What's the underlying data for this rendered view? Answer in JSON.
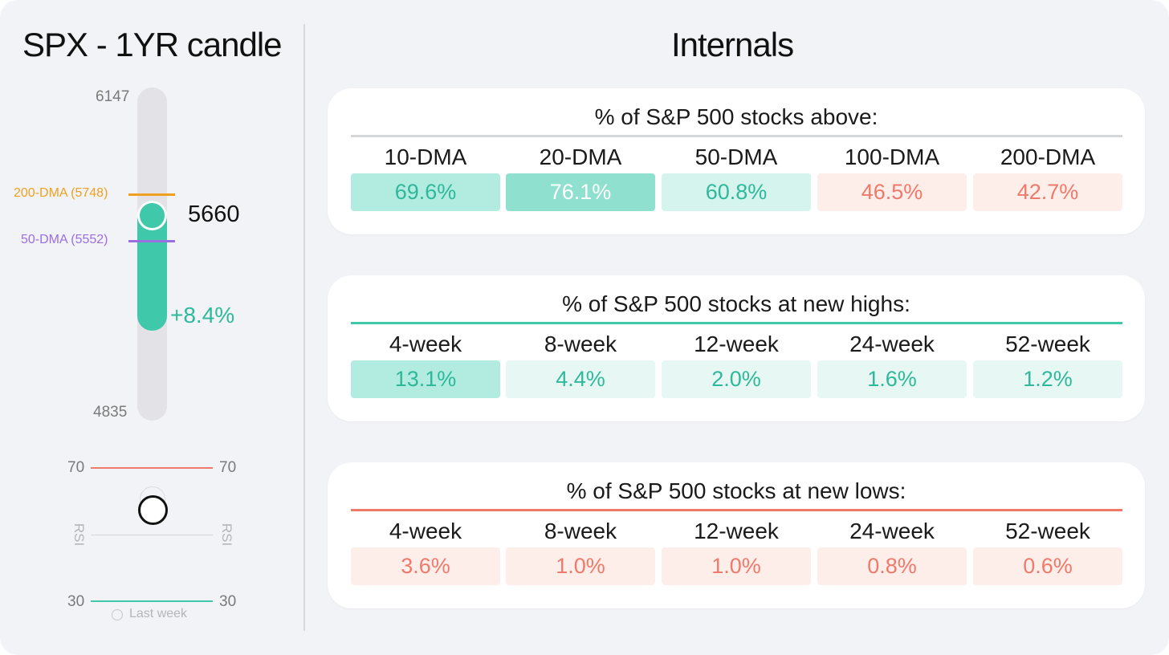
{
  "left_title": "SPX - 1YR candle",
  "right_title": "Internals",
  "colors": {
    "background": "#f2f3f7",
    "green": "#3fc8a9",
    "green_text": "#2fb89a",
    "red_text": "#ef7a6b",
    "orange": "#f0a020",
    "purple": "#9a6fe0",
    "track": "#e2e2e7"
  },
  "candle": {
    "high_label": "6147",
    "low_label": "4835",
    "current_label": "5660",
    "change_label": "+8.4%",
    "dma200_label": "200-DMA (5748)",
    "dma50_label": "50-DMA (5552)"
  },
  "rsi": {
    "upper_left": "70",
    "upper_right": "70",
    "lower_left": "30",
    "lower_right": "30",
    "axis_left": "RSI",
    "axis_right": "RSI",
    "legend_last_week": "Last week"
  },
  "panels": [
    {
      "title": "% of S&P 500 stocks above:",
      "rule_color": "#d6d7db",
      "columns": [
        "10-DMA",
        "20-DMA",
        "50-DMA",
        "100-DMA",
        "200-DMA"
      ],
      "values": [
        "69.6%",
        "76.1%",
        "60.8%",
        "46.5%",
        "42.7%"
      ],
      "cell_colors": [
        "#b2ebdf",
        "#8fe0cf",
        "#d5f4ed",
        "#fdeeea",
        "#fdeeea"
      ],
      "text_colors": [
        "#2fb89a",
        "#ffffff",
        "#2fb89a",
        "#ef7a6b",
        "#ef7a6b"
      ]
    },
    {
      "title": "% of S&P 500 stocks at new highs:",
      "rule_color": "#3fc8a9",
      "columns": [
        "4-week",
        "8-week",
        "12-week",
        "24-week",
        "52-week"
      ],
      "values": [
        "13.1%",
        "4.4%",
        "2.0%",
        "1.6%",
        "1.2%"
      ],
      "cell_colors": [
        "#b2ebdf",
        "#e7f8f4",
        "#e7f8f4",
        "#e7f8f4",
        "#e7f8f4"
      ],
      "text_colors": [
        "#2fb89a",
        "#2fb89a",
        "#2fb89a",
        "#2fb89a",
        "#2fb89a"
      ]
    },
    {
      "title": "% of S&P 500 stocks at new lows:",
      "rule_color": "#ef7a6b",
      "columns": [
        "4-week",
        "8-week",
        "12-week",
        "24-week",
        "52-week"
      ],
      "values": [
        "3.6%",
        "1.0%",
        "1.0%",
        "0.8%",
        "0.6%"
      ],
      "cell_colors": [
        "#fdeeea",
        "#fdeeea",
        "#fdeeea",
        "#fdeeea",
        "#fdeeea"
      ],
      "text_colors": [
        "#ef7a6b",
        "#ef7a6b",
        "#ef7a6b",
        "#ef7a6b",
        "#ef7a6b"
      ]
    }
  ],
  "chart_data": {
    "type": "table",
    "candle": {
      "low": 4835,
      "high": 6147,
      "current": 5660,
      "dma200": 5748,
      "dma50": 5552,
      "change_pct": 8.4
    },
    "rsi": {
      "upper": 70,
      "lower": 30
    },
    "tables": [
      {
        "title": "% of S&P 500 stocks above:",
        "columns": [
          "10-DMA",
          "20-DMA",
          "50-DMA",
          "100-DMA",
          "200-DMA"
        ],
        "values": [
          69.6,
          76.1,
          60.8,
          46.5,
          42.7
        ]
      },
      {
        "title": "% of S&P 500 stocks at new highs:",
        "columns": [
          "4-week",
          "8-week",
          "12-week",
          "24-week",
          "52-week"
        ],
        "values": [
          13.1,
          4.4,
          2.0,
          1.6,
          1.2
        ]
      },
      {
        "title": "% of S&P 500 stocks at new lows:",
        "columns": [
          "4-week",
          "8-week",
          "12-week",
          "24-week",
          "52-week"
        ],
        "values": [
          3.6,
          1.0,
          1.0,
          0.8,
          0.6
        ]
      }
    ]
  }
}
